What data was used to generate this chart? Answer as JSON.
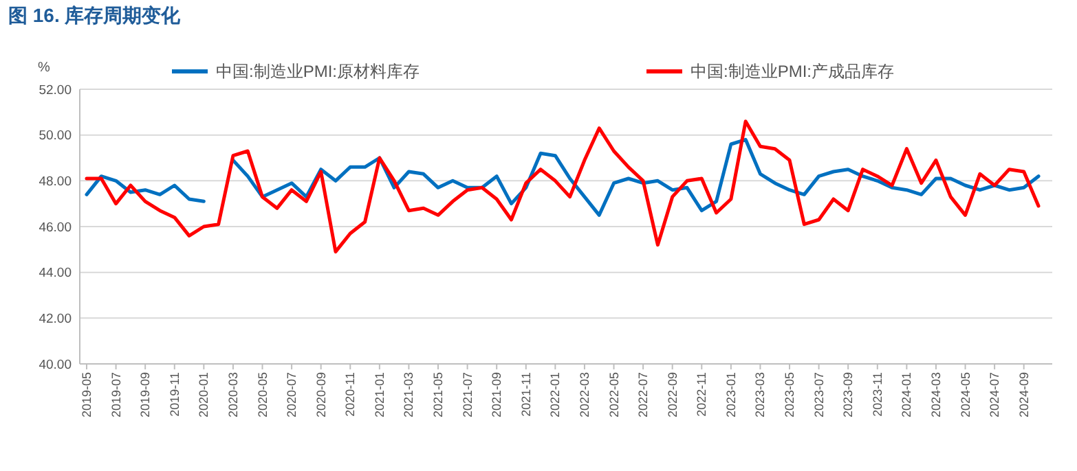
{
  "chart_data": {
    "type": "line",
    "title": "图 16.  库存周期变化",
    "ylabel": "%",
    "categories": [
      "2019-05",
      null,
      "2019-07",
      null,
      "2019-09",
      null,
      "2019-11",
      null,
      "2020-01",
      null,
      "2020-03",
      null,
      "2020-05",
      null,
      "2020-07",
      null,
      "2020-09",
      null,
      "2020-11",
      null,
      "2021-01",
      null,
      "2021-03",
      null,
      "2021-05",
      null,
      "2021-07",
      null,
      "2021-09",
      null,
      "2021-11",
      null,
      "2022-01",
      null,
      "2022-03",
      null,
      "2022-05",
      null,
      "2022-07",
      null,
      "2022-09",
      null,
      "2022-11",
      null,
      "2023-01",
      null,
      "2023-03",
      null,
      "2023-05",
      null,
      "2023-07",
      null,
      "2023-09",
      null,
      "2023-11",
      null,
      "2024-01",
      null,
      "2024-03",
      null,
      "2024-05",
      null,
      "2024-07",
      null,
      "2024-09",
      null
    ],
    "series": [
      {
        "name": "中国:制造业PMI:原材料库存",
        "color": "#0070c0",
        "values": [
          47.4,
          48.2,
          48.0,
          47.5,
          47.6,
          47.4,
          47.8,
          47.2,
          47.1,
          null,
          48.9,
          48.2,
          47.3,
          47.6,
          47.9,
          47.3,
          48.5,
          48.0,
          48.6,
          48.6,
          49.0,
          47.7,
          48.4,
          48.3,
          47.7,
          48.0,
          47.7,
          47.7,
          48.2,
          47.0,
          47.7,
          49.2,
          49.1,
          48.1,
          47.3,
          46.5,
          47.9,
          48.1,
          47.9,
          48.0,
          47.6,
          47.7,
          46.7,
          47.1,
          49.6,
          49.8,
          48.3,
          47.9,
          47.6,
          47.4,
          48.2,
          48.4,
          48.5,
          48.2,
          48.0,
          47.7,
          47.6,
          47.4,
          48.1,
          48.1,
          47.8,
          47.6,
          47.8,
          47.6,
          47.7,
          48.2
        ]
      },
      {
        "name": "中国:制造业PMI:产成品库存",
        "color": "#ff0000",
        "values": [
          48.1,
          48.1,
          47.0,
          47.8,
          47.1,
          46.7,
          46.4,
          45.6,
          46.0,
          46.1,
          49.1,
          49.3,
          47.3,
          46.8,
          47.6,
          47.1,
          48.4,
          44.9,
          45.7,
          46.2,
          49.0,
          48.0,
          46.7,
          46.8,
          46.5,
          47.1,
          47.6,
          47.7,
          47.2,
          46.3,
          47.9,
          48.5,
          48.0,
          47.3,
          48.9,
          50.3,
          49.3,
          48.6,
          48.0,
          45.2,
          47.3,
          48.0,
          48.1,
          46.6,
          47.2,
          50.6,
          49.5,
          49.4,
          48.9,
          46.1,
          46.3,
          47.2,
          46.7,
          48.5,
          48.2,
          47.8,
          49.4,
          47.9,
          48.9,
          47.3,
          46.5,
          48.3,
          47.8,
          48.5,
          48.4,
          46.9
        ]
      }
    ],
    "ylim": [
      40,
      52
    ],
    "yticks": [
      {
        "value": 40,
        "label": "40.00"
      },
      {
        "value": 42,
        "label": "42.00"
      },
      {
        "value": 44,
        "label": "44.00"
      },
      {
        "value": 46,
        "label": "46.00"
      },
      {
        "value": 48,
        "label": "48.00"
      },
      {
        "value": 50,
        "label": "50.00"
      },
      {
        "value": 52,
        "label": "52.00"
      }
    ],
    "grid": "y",
    "legend": "top",
    "line_style": "solid",
    "marker": "none"
  }
}
